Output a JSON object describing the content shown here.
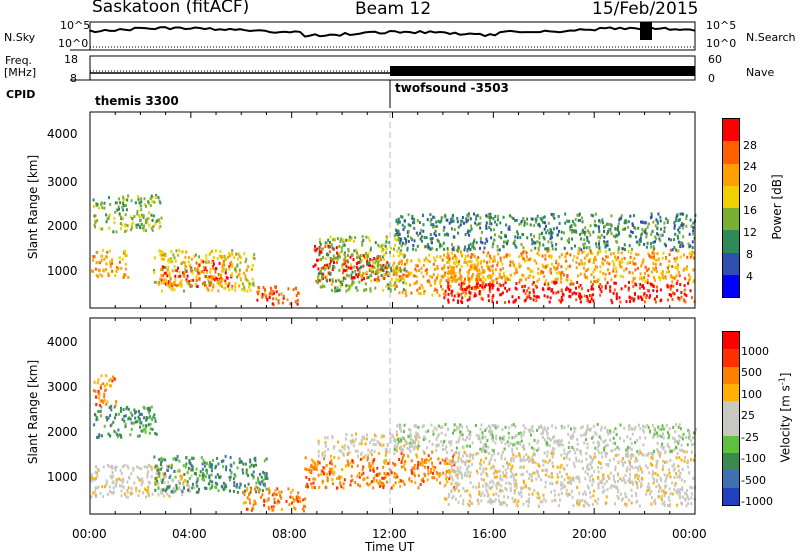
{
  "header": {
    "station": "Saskatoon (fitACF)",
    "beam": "Beam 12",
    "date": "15/Feb/2015"
  },
  "noise_panel": {
    "left_label": "N.Sky",
    "right_label": "N.Search",
    "left_ticks": [
      "10^5",
      "10^0"
    ],
    "right_ticks": [
      "10^5",
      "10^0"
    ]
  },
  "freq_panel": {
    "left_label_1": "Freq.",
    "left_label_2": "[MHz]",
    "right_label": "Nave",
    "left_ticks": [
      "18",
      "8"
    ],
    "right_ticks": [
      "60",
      "0"
    ]
  },
  "cpid": {
    "label": "CPID",
    "modes": [
      {
        "name": "themis 3300",
        "start_hour": 0
      },
      {
        "name": "twofsound -3503",
        "start_hour": 12
      }
    ]
  },
  "power_panel": {
    "ylabel": "Slant Range [km]",
    "yticks": [
      "4000",
      "3000",
      "2000",
      "1000"
    ],
    "colorbar_label": "Power [dB]",
    "colorbar_ticks": [
      "28",
      "24",
      "20",
      "16",
      "12",
      "8",
      "4"
    ],
    "colors": [
      "#0000ff",
      "#3050b0",
      "#2e8b57",
      "#7ab030",
      "#f0d000",
      "#ffa000",
      "#ff6000",
      "#ff0000"
    ]
  },
  "velocity_panel": {
    "ylabel": "Slant Range [km]",
    "yticks": [
      "4000",
      "3000",
      "2000",
      "1000"
    ],
    "colorbar_label": "Velocity [m s",
    "colorbar_label_sup": "-1",
    "colorbar_label_end": "]",
    "colorbar_ticks": [
      "1000",
      "500",
      "100",
      "25",
      "-25",
      "-100",
      "-500",
      "-1000"
    ],
    "colors": [
      "#2040c0",
      "#4070b0",
      "#3a8a50",
      "#60c040",
      "#c8c8c0",
      "#c8c8c0",
      "#ffb000",
      "#ff8000",
      "#ff3000",
      "#ff0000"
    ]
  },
  "xaxis": {
    "label": "Time UT",
    "ticks": [
      "00:00",
      "04:00",
      "08:00",
      "12:00",
      "16:00",
      "20:00",
      "00:00"
    ]
  },
  "chart_data": {
    "type": "heatmap",
    "x_range_hours": [
      0,
      24
    ],
    "y_range_km": [
      200,
      4500
    ],
    "power_regions": [
      {
        "t0": 0.0,
        "t1": 1.5,
        "r0": 900,
        "r1": 1500,
        "level": 5
      },
      {
        "t0": 0.1,
        "t1": 2.8,
        "r0": 1900,
        "r1": 2700,
        "level": 3
      },
      {
        "t0": 2.8,
        "t1": 5.6,
        "r0": 700,
        "r1": 1250,
        "level": 7
      },
      {
        "t0": 2.5,
        "t1": 6.5,
        "r0": 600,
        "r1": 1500,
        "level": 4
      },
      {
        "t0": 6.6,
        "t1": 8.3,
        "r0": 300,
        "r1": 700,
        "level": 6
      },
      {
        "t0": 8.8,
        "t1": 9.8,
        "r0": 800,
        "r1": 1600,
        "level": 7
      },
      {
        "t0": 10.0,
        "t1": 11.8,
        "r0": 800,
        "r1": 1400,
        "level": 7
      },
      {
        "t0": 9.0,
        "t1": 12.5,
        "r0": 600,
        "r1": 1800,
        "level": 3
      },
      {
        "t0": 12.0,
        "t1": 16.0,
        "r0": 500,
        "r1": 1400,
        "level": 5
      },
      {
        "t0": 14.0,
        "t1": 24.0,
        "r0": 350,
        "r1": 800,
        "level": 7
      },
      {
        "t0": 14.0,
        "t1": 24.0,
        "r0": 800,
        "r1": 1500,
        "level": 5
      },
      {
        "t0": 12.0,
        "t1": 24.0,
        "r0": 1500,
        "r1": 2300,
        "level": 2
      }
    ],
    "velocity_regions": [
      {
        "t0": 0.0,
        "t1": 4.2,
        "r0": 600,
        "r1": 1300,
        "level": 5
      },
      {
        "t0": 0.1,
        "t1": 2.7,
        "r0": 1900,
        "r1": 2600,
        "level": 2
      },
      {
        "t0": 0.1,
        "t1": 1.0,
        "r0": 2600,
        "r1": 3300,
        "level": 7
      },
      {
        "t0": 2.5,
        "t1": 7.0,
        "r0": 700,
        "r1": 1500,
        "level": 2
      },
      {
        "t0": 6.0,
        "t1": 8.5,
        "r0": 300,
        "r1": 800,
        "level": 7
      },
      {
        "t0": 8.5,
        "t1": 12.0,
        "r0": 800,
        "r1": 1500,
        "level": 7
      },
      {
        "t0": 9.0,
        "t1": 13.0,
        "r0": 1500,
        "r1": 2000,
        "level": 5
      },
      {
        "t0": 12.0,
        "t1": 14.5,
        "r0": 800,
        "r1": 1600,
        "level": 7
      },
      {
        "t0": 14.0,
        "t1": 24.0,
        "r0": 400,
        "r1": 1600,
        "level": 5
      },
      {
        "t0": 12.0,
        "t1": 24.0,
        "r0": 1600,
        "r1": 2200,
        "level": 4
      }
    ]
  }
}
